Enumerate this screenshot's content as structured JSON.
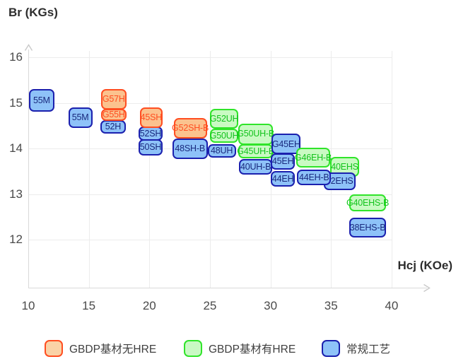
{
  "chart_data": {
    "type": "scatter",
    "note": "labeled grade boxes spanning Hcj/Br ranges",
    "xlabel": "Hcj (KOe)",
    "ylabel": "Br (KGs)",
    "xlim": [
      10,
      43
    ],
    "ylim": [
      11.6,
      16.6
    ],
    "x_ticks": [
      10,
      15,
      20,
      25,
      30,
      35,
      40
    ],
    "y_ticks": [
      16,
      15,
      14,
      13,
      12
    ],
    "grid": "on",
    "legend_position": "bottom",
    "categories": [
      {
        "id": "gbdp_no_hre",
        "label": "GBDP基材无HRE",
        "fill": "#FBC28E",
        "border": "#FF4E21",
        "text": "#FF4E21",
        "legend_fill": "#FAD2A6"
      },
      {
        "id": "gbdp_hre",
        "label": "GBDP基材有HRE",
        "fill": "#C9FAC3",
        "border": "#30E42A",
        "text": "#13C31D",
        "legend_fill": "#C9F9C4"
      },
      {
        "id": "conventional",
        "label": "常规工艺",
        "fill": "#8EC2F8",
        "border": "#1B20AE",
        "text": "#19297D",
        "legend_fill": "#8EC2F8"
      }
    ],
    "points": [
      {
        "label": "55M",
        "category": "conventional",
        "hcj": [
          10.05,
          12.15
        ],
        "br": [
          14.81,
          15.3
        ]
      },
      {
        "label": "55M",
        "category": "conventional",
        "hcj": [
          13.3,
          15.3
        ],
        "br": [
          14.45,
          14.9
        ]
      },
      {
        "label": "52H",
        "category": "conventional",
        "hcj": [
          15.95,
          18.05
        ],
        "br": [
          14.32,
          14.62
        ]
      },
      {
        "label": "G57H",
        "category": "gbdp_no_hre",
        "hcj": [
          16.0,
          18.1
        ],
        "br": [
          14.85,
          15.3
        ]
      },
      {
        "label": "G55H",
        "category": "gbdp_no_hre",
        "hcj": [
          16.0,
          18.1
        ],
        "br": [
          14.6,
          14.87
        ]
      },
      {
        "label": "52SH",
        "category": "conventional",
        "hcj": [
          19.1,
          21.1
        ],
        "br": [
          14.17,
          14.48
        ]
      },
      {
        "label": "50SH",
        "category": "conventional",
        "hcj": [
          19.1,
          21.1
        ],
        "br": [
          13.85,
          14.2
        ]
      },
      {
        "label": "45SH",
        "category": "gbdp_no_hre",
        "hcj": [
          19.2,
          21.1
        ],
        "br": [
          14.45,
          14.9
        ]
      },
      {
        "label": "48SH-B",
        "category": "conventional",
        "hcj": [
          21.9,
          24.8
        ],
        "br": [
          13.76,
          14.22
        ]
      },
      {
        "label": "G52SH-B",
        "category": "gbdp_no_hre",
        "hcj": [
          22.0,
          24.75
        ],
        "br": [
          14.22,
          14.67
        ]
      },
      {
        "label": "48UH",
        "category": "conventional",
        "hcj": [
          24.8,
          27.15
        ],
        "br": [
          13.8,
          14.1
        ]
      },
      {
        "label": "G52UH",
        "category": "gbdp_hre",
        "hcj": [
          25.0,
          27.35
        ],
        "br": [
          14.43,
          14.87
        ]
      },
      {
        "label": "G50UH",
        "category": "gbdp_hre",
        "hcj": [
          25.0,
          27.35
        ],
        "br": [
          14.12,
          14.43
        ]
      },
      {
        "label": "G50UH-B",
        "category": "gbdp_hre",
        "hcj": [
          27.35,
          30.2
        ],
        "br": [
          14.08,
          14.55
        ]
      },
      {
        "label": "G45UH-B",
        "category": "gbdp_hre",
        "hcj": [
          27.35,
          30.2
        ],
        "br": [
          13.78,
          14.1
        ]
      },
      {
        "label": "40UH-B",
        "category": "conventional",
        "hcj": [
          27.4,
          30.15
        ],
        "br": [
          13.42,
          13.77
        ]
      },
      {
        "label": "G45EH",
        "category": "conventional",
        "hcj": [
          30.1,
          32.5
        ],
        "br": [
          13.87,
          14.32
        ]
      },
      {
        "label": "45EH",
        "category": "conventional",
        "hcj": [
          30.05,
          32.0
        ],
        "br": [
          13.53,
          13.89
        ]
      },
      {
        "label": "44EH",
        "category": "conventional",
        "hcj": [
          30.05,
          32.0
        ],
        "br": [
          13.16,
          13.51
        ]
      },
      {
        "label": "40EHS",
        "category": "gbdp_hre",
        "hcj": [
          34.95,
          37.3
        ],
        "br": [
          13.38,
          13.82
        ]
      },
      {
        "label": "G46EH-B",
        "category": "gbdp_hre",
        "hcj": [
          32.1,
          34.95
        ],
        "br": [
          13.58,
          14.02
        ]
      },
      {
        "label": "42EHS",
        "category": "conventional",
        "hcj": [
          34.4,
          37.0
        ],
        "br": [
          13.08,
          13.47
        ]
      },
      {
        "label": "44EH-B",
        "category": "conventional",
        "hcj": [
          32.2,
          35.0
        ],
        "br": [
          13.19,
          13.53
        ]
      },
      {
        "label": "G40EHS-B",
        "category": "gbdp_hre",
        "hcj": [
          36.5,
          39.55
        ],
        "br": [
          12.62,
          12.99
        ]
      },
      {
        "label": "38EHS-B",
        "category": "conventional",
        "hcj": [
          36.5,
          39.55
        ],
        "br": [
          12.05,
          12.48
        ]
      }
    ],
    "colors_misc": {
      "gridline": "#ececec",
      "axis_line": "#d9d9d9",
      "axis_arrow": "#c9c9c9",
      "tick_text": "#4a4a4a",
      "title_text": "#2d2d2d",
      "legend_text": "#3e3e3e",
      "background": "#ffffff"
    }
  }
}
